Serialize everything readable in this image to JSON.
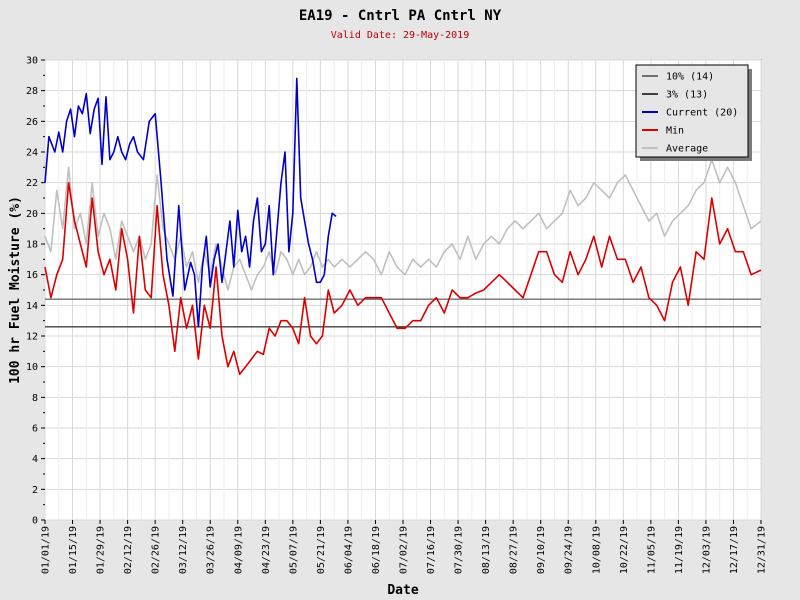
{
  "chart_data": {
    "type": "line",
    "title": "EA19 - Cntrl PA Cntrl NY",
    "subtitle": "Valid Date: 29-May-2019",
    "xlabel": "Date",
    "ylabel": "100 hr Fuel Moisture (%)",
    "ylim": [
      0,
      30
    ],
    "yticks": [
      0,
      2,
      4,
      6,
      8,
      10,
      12,
      14,
      16,
      18,
      20,
      22,
      24,
      26,
      28,
      30
    ],
    "xlim": [
      "2019-01-01",
      "2019-12-31"
    ],
    "xticks": [
      "01/01/19",
      "01/15/19",
      "01/29/19",
      "02/12/19",
      "02/26/19",
      "03/12/19",
      "03/26/19",
      "04/09/19",
      "04/23/19",
      "05/07/19",
      "05/21/19",
      "06/04/19",
      "06/18/19",
      "07/02/19",
      "07/16/19",
      "07/30/19",
      "08/13/19",
      "08/27/19",
      "09/10/19",
      "09/24/19",
      "10/08/19",
      "10/22/19",
      "11/05/19",
      "11/19/19",
      "12/03/19",
      "12/17/19",
      "12/31/19"
    ],
    "grid": true,
    "legend_position": "top-right",
    "series": [
      {
        "name": "10% (14)",
        "color": "#707070",
        "x": [
          "2019-01-01",
          "2019-12-31"
        ],
        "values": [
          14.4,
          14.4
        ]
      },
      {
        "name": "3% (13)",
        "color": "#404040",
        "x": [
          "2019-01-01",
          "2019-12-31"
        ],
        "values": [
          12.6,
          12.6
        ]
      },
      {
        "name": "Current (20)",
        "color": "#0000cc",
        "x": [
          "2019-01-01",
          "2019-01-03",
          "2019-01-06",
          "2019-01-08",
          "2019-01-10",
          "2019-01-12",
          "2019-01-14",
          "2019-01-16",
          "2019-01-18",
          "2019-01-20",
          "2019-01-22",
          "2019-01-24",
          "2019-01-26",
          "2019-01-28",
          "2019-01-30",
          "2019-02-01",
          "2019-02-03",
          "2019-02-05",
          "2019-02-07",
          "2019-02-09",
          "2019-02-11",
          "2019-02-13",
          "2019-02-15",
          "2019-02-17",
          "2019-02-20",
          "2019-02-23",
          "2019-02-26",
          "2019-03-01",
          "2019-03-04",
          "2019-03-07",
          "2019-03-10",
          "2019-03-13",
          "2019-03-16",
          "2019-03-18",
          "2019-03-20",
          "2019-03-22",
          "2019-03-24",
          "2019-03-26",
          "2019-03-28",
          "2019-03-30",
          "2019-04-01",
          "2019-04-03",
          "2019-04-05",
          "2019-04-07",
          "2019-04-09",
          "2019-04-11",
          "2019-04-13",
          "2019-04-15",
          "2019-04-17",
          "2019-04-19",
          "2019-04-21",
          "2019-04-23",
          "2019-04-25",
          "2019-04-27",
          "2019-04-29",
          "2019-05-01",
          "2019-05-03",
          "2019-05-05",
          "2019-05-07",
          "2019-05-09",
          "2019-05-11",
          "2019-05-13",
          "2019-05-15",
          "2019-05-17",
          "2019-05-19",
          "2019-05-21",
          "2019-05-23",
          "2019-05-25",
          "2019-05-27",
          "2019-05-29"
        ],
        "values": [
          22.0,
          25.0,
          24.0,
          25.3,
          24.0,
          26.0,
          26.8,
          25.0,
          27.0,
          26.5,
          27.8,
          25.2,
          26.8,
          27.5,
          23.2,
          27.6,
          23.5,
          24.0,
          25.0,
          24.0,
          23.5,
          24.5,
          25.0,
          24.0,
          23.5,
          26.0,
          26.5,
          22.0,
          17.0,
          14.6,
          20.5,
          15.0,
          16.8,
          16.0,
          12.6,
          16.5,
          18.5,
          15.2,
          17.0,
          18.0,
          15.5,
          17.5,
          19.5,
          16.5,
          20.2,
          17.5,
          18.5,
          16.5,
          19.5,
          21.0,
          17.5,
          18.0,
          20.5,
          16.0,
          19.0,
          22.0,
          24.0,
          17.5,
          20.0,
          28.8,
          21.0,
          19.5,
          18.0,
          17.0,
          15.5,
          15.5,
          16.0,
          18.5,
          20.0,
          19.8
        ]
      },
      {
        "name": "Min",
        "color": "#dd0000",
        "x": [
          "2019-01-01",
          "2019-01-04",
          "2019-01-07",
          "2019-01-10",
          "2019-01-13",
          "2019-01-16",
          "2019-01-19",
          "2019-01-22",
          "2019-01-25",
          "2019-01-28",
          "2019-01-31",
          "2019-02-03",
          "2019-02-06",
          "2019-02-09",
          "2019-02-12",
          "2019-02-15",
          "2019-02-18",
          "2019-02-21",
          "2019-02-24",
          "2019-02-27",
          "2019-03-02",
          "2019-03-05",
          "2019-03-08",
          "2019-03-11",
          "2019-03-14",
          "2019-03-17",
          "2019-03-20",
          "2019-03-23",
          "2019-03-26",
          "2019-03-29",
          "2019-04-01",
          "2019-04-04",
          "2019-04-07",
          "2019-04-10",
          "2019-04-13",
          "2019-04-16",
          "2019-04-19",
          "2019-04-22",
          "2019-04-25",
          "2019-04-28",
          "2019-05-01",
          "2019-05-04",
          "2019-05-07",
          "2019-05-10",
          "2019-05-13",
          "2019-05-16",
          "2019-05-19",
          "2019-05-22",
          "2019-05-25",
          "2019-05-28",
          "2019-06-01",
          "2019-06-05",
          "2019-06-09",
          "2019-06-13",
          "2019-06-17",
          "2019-06-21",
          "2019-06-25",
          "2019-06-29",
          "2019-07-03",
          "2019-07-07",
          "2019-07-11",
          "2019-07-15",
          "2019-07-19",
          "2019-07-23",
          "2019-07-27",
          "2019-07-31",
          "2019-08-04",
          "2019-08-08",
          "2019-08-12",
          "2019-08-16",
          "2019-08-20",
          "2019-08-24",
          "2019-08-28",
          "2019-09-01",
          "2019-09-05",
          "2019-09-09",
          "2019-09-13",
          "2019-09-17",
          "2019-09-21",
          "2019-09-25",
          "2019-09-29",
          "2019-10-03",
          "2019-10-07",
          "2019-10-11",
          "2019-10-15",
          "2019-10-19",
          "2019-10-23",
          "2019-10-27",
          "2019-10-31",
          "2019-11-04",
          "2019-11-08",
          "2019-11-12",
          "2019-11-16",
          "2019-11-20",
          "2019-11-24",
          "2019-11-28",
          "2019-12-02",
          "2019-12-06",
          "2019-12-10",
          "2019-12-14",
          "2019-12-18",
          "2019-12-22",
          "2019-12-26",
          "2019-12-31"
        ],
        "values": [
          16.5,
          14.5,
          16.0,
          17.0,
          22.0,
          19.5,
          18.0,
          16.5,
          21.0,
          17.5,
          16.0,
          17.0,
          15.0,
          19.0,
          17.0,
          13.5,
          18.5,
          15.0,
          14.5,
          20.5,
          16.0,
          14.0,
          11.0,
          14.5,
          12.5,
          14.0,
          10.5,
          14.0,
          12.5,
          16.5,
          12.0,
          10.0,
          11.0,
          9.5,
          10.0,
          10.5,
          11.0,
          10.8,
          12.5,
          12.0,
          13.0,
          13.0,
          12.5,
          11.5,
          14.5,
          12.0,
          11.5,
          12.0,
          15.0,
          13.5,
          14.0,
          15.0,
          14.0,
          14.5,
          14.5,
          14.5,
          13.5,
          12.5,
          12.5,
          13.0,
          13.0,
          14.0,
          14.5,
          13.5,
          15.0,
          14.5,
          14.5,
          14.8,
          15.0,
          15.5,
          16.0,
          15.5,
          15.0,
          14.5,
          16.0,
          17.5,
          17.5,
          16.0,
          15.5,
          17.5,
          16.0,
          17.0,
          18.5,
          16.5,
          18.5,
          17.0,
          17.0,
          15.5,
          16.5,
          14.5,
          14.0,
          13.0,
          15.5,
          16.5,
          14.0,
          17.5,
          17.0,
          21.0,
          18.0,
          19.0,
          17.5,
          17.5,
          16.0,
          16.3
        ]
      },
      {
        "name": "Average",
        "color": "#c0c0c0",
        "x": [
          "2019-01-01",
          "2019-01-04",
          "2019-01-07",
          "2019-01-10",
          "2019-01-13",
          "2019-01-16",
          "2019-01-19",
          "2019-01-22",
          "2019-01-25",
          "2019-01-28",
          "2019-01-31",
          "2019-02-03",
          "2019-02-06",
          "2019-02-09",
          "2019-02-12",
          "2019-02-15",
          "2019-02-18",
          "2019-02-21",
          "2019-02-24",
          "2019-02-27",
          "2019-03-02",
          "2019-03-05",
          "2019-03-08",
          "2019-03-11",
          "2019-03-14",
          "2019-03-17",
          "2019-03-20",
          "2019-03-23",
          "2019-03-26",
          "2019-03-29",
          "2019-04-01",
          "2019-04-04",
          "2019-04-07",
          "2019-04-10",
          "2019-04-13",
          "2019-04-16",
          "2019-04-19",
          "2019-04-22",
          "2019-04-25",
          "2019-04-28",
          "2019-05-01",
          "2019-05-04",
          "2019-05-07",
          "2019-05-10",
          "2019-05-13",
          "2019-05-16",
          "2019-05-19",
          "2019-05-22",
          "2019-05-25",
          "2019-05-28",
          "2019-06-01",
          "2019-06-05",
          "2019-06-09",
          "2019-06-13",
          "2019-06-17",
          "2019-06-21",
          "2019-06-25",
          "2019-06-29",
          "2019-07-03",
          "2019-07-07",
          "2019-07-11",
          "2019-07-15",
          "2019-07-19",
          "2019-07-23",
          "2019-07-27",
          "2019-07-31",
          "2019-08-04",
          "2019-08-08",
          "2019-08-12",
          "2019-08-16",
          "2019-08-20",
          "2019-08-24",
          "2019-08-28",
          "2019-09-01",
          "2019-09-05",
          "2019-09-09",
          "2019-09-13",
          "2019-09-17",
          "2019-09-21",
          "2019-09-25",
          "2019-09-29",
          "2019-10-03",
          "2019-10-07",
          "2019-10-11",
          "2019-10-15",
          "2019-10-19",
          "2019-10-23",
          "2019-10-27",
          "2019-10-31",
          "2019-11-04",
          "2019-11-08",
          "2019-11-12",
          "2019-11-16",
          "2019-11-20",
          "2019-11-24",
          "2019-11-28",
          "2019-12-02",
          "2019-12-06",
          "2019-12-10",
          "2019-12-14",
          "2019-12-18",
          "2019-12-22",
          "2019-12-26",
          "2019-12-31"
        ],
        "values": [
          18.5,
          17.5,
          21.5,
          19.0,
          23.0,
          19.0,
          20.0,
          18.0,
          22.0,
          18.5,
          20.0,
          19.0,
          17.0,
          19.5,
          18.5,
          17.5,
          18.5,
          17.0,
          18.0,
          22.5,
          19.0,
          18.0,
          17.0,
          18.5,
          16.5,
          17.5,
          15.5,
          17.5,
          16.0,
          18.0,
          16.5,
          15.0,
          16.5,
          17.0,
          16.0,
          15.0,
          16.0,
          16.5,
          17.5,
          16.0,
          17.5,
          17.0,
          16.0,
          17.0,
          16.0,
          16.5,
          17.5,
          16.5,
          17.0,
          16.5,
          17.0,
          16.5,
          17.0,
          17.5,
          17.0,
          16.0,
          17.5,
          16.5,
          16.0,
          17.0,
          16.5,
          17.0,
          16.5,
          17.5,
          18.0,
          17.0,
          18.5,
          17.0,
          18.0,
          18.5,
          18.0,
          19.0,
          19.5,
          19.0,
          19.5,
          20.0,
          19.0,
          19.5,
          20.0,
          21.5,
          20.5,
          21.0,
          22.0,
          21.5,
          21.0,
          22.0,
          22.5,
          21.5,
          20.5,
          19.5,
          20.0,
          18.5,
          19.5,
          20.0,
          20.5,
          21.5,
          22.0,
          23.5,
          22.0,
          23.0,
          22.0,
          20.5,
          19.0,
          19.5
        ]
      }
    ]
  }
}
